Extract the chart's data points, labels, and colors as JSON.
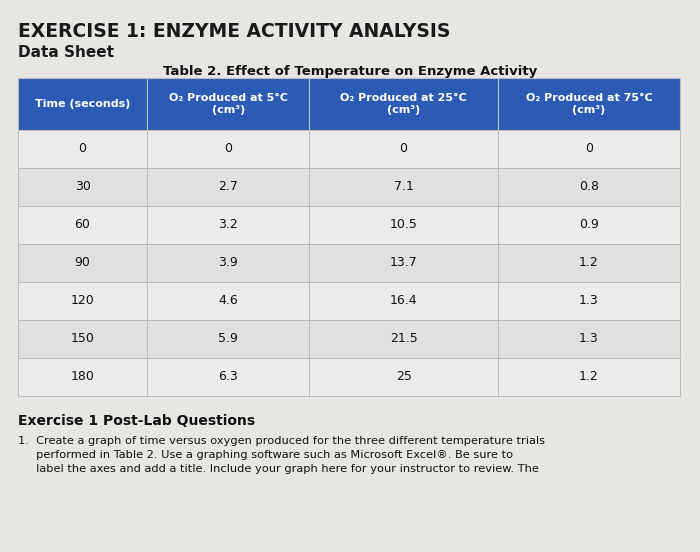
{
  "title_main": "EXERCISE 1: ENZYME ACTIVITY ANALYSIS",
  "subtitle": "Data Sheet",
  "table_title": "Table 2. Effect of Temperature on Enzyme Activity",
  "col_headers": [
    "Time (seconds)",
    "O₂ Produced at 5°C\n(cm³)",
    "O₂ Produced at 25°C\n(cm³)",
    "O₂ Produced at 75°C\n(cm³)"
  ],
  "rows": [
    [
      "0",
      "0",
      "0",
      "0"
    ],
    [
      "30",
      "2.7",
      "7.1",
      "0.8"
    ],
    [
      "60",
      "3.2",
      "10.5",
      "0.9"
    ],
    [
      "90",
      "3.9",
      "13.7",
      "1.2"
    ],
    [
      "120",
      "4.6",
      "16.4",
      "1.3"
    ],
    [
      "150",
      "5.9",
      "21.5",
      "1.3"
    ],
    [
      "180",
      "6.3",
      "25",
      "1.2"
    ]
  ],
  "header_bg": "#2B5BB5",
  "header_text": "#FFFFFF",
  "row_bg_light": "#EBEBEB",
  "row_bg_mid": "#E0E0E0",
  "cell_text": "#111111",
  "border_color": "#BBBBBB",
  "background_color": "#E8E6E3",
  "post_lab_title": "Exercise 1 Post-Lab Questions",
  "post_lab_line1": "1.  Create a graph of time versus oxygen produced for the three different temperature trials",
  "post_lab_line2": "     performed in Table 2. Use a graphing software such as Microsoft Excel®. Be sure to",
  "post_lab_line3": "     label the axes and add a title. Include your graph here for your instructor to review. The"
}
